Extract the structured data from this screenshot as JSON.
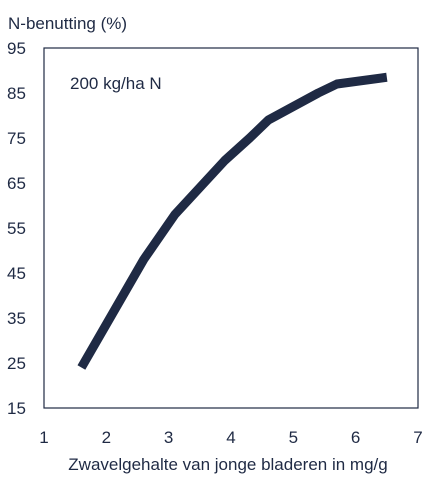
{
  "chart_data": {
    "type": "line",
    "ylabel": "N-benutting (%)",
    "xlabel": "Zwavelgehalte van jonge bladeren in mg/g",
    "annotation": "200 kg/ha N",
    "xlim": [
      1,
      7
    ],
    "ylim": [
      15,
      95
    ],
    "xticks": [
      1,
      2,
      3,
      4,
      5,
      6,
      7
    ],
    "yticks": [
      15,
      25,
      35,
      45,
      55,
      65,
      75,
      85,
      95
    ],
    "series_color": "#1f2a44",
    "grid": false,
    "x": [
      1.6,
      2.1,
      2.6,
      2.9,
      3.1,
      3.5,
      3.9,
      4.3,
      4.6,
      5.0,
      5.4,
      5.7,
      6.5
    ],
    "y": [
      24,
      36,
      48,
      54,
      58,
      64,
      70,
      75,
      79,
      82,
      85,
      87,
      88.5
    ]
  }
}
